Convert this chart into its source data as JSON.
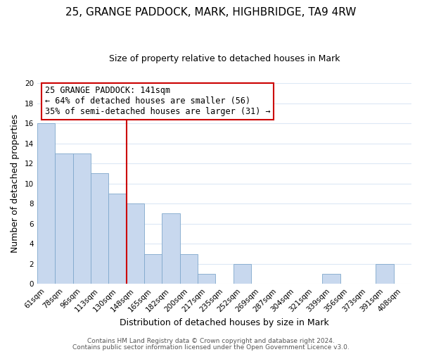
{
  "title1": "25, GRANGE PADDOCK, MARK, HIGHBRIDGE, TA9 4RW",
  "title2": "Size of property relative to detached houses in Mark",
  "xlabel": "Distribution of detached houses by size in Mark",
  "ylabel": "Number of detached properties",
  "bins": [
    "61sqm",
    "78sqm",
    "96sqm",
    "113sqm",
    "130sqm",
    "148sqm",
    "165sqm",
    "182sqm",
    "200sqm",
    "217sqm",
    "235sqm",
    "252sqm",
    "269sqm",
    "287sqm",
    "304sqm",
    "321sqm",
    "339sqm",
    "356sqm",
    "373sqm",
    "391sqm",
    "408sqm"
  ],
  "values": [
    16,
    13,
    13,
    11,
    9,
    8,
    3,
    7,
    3,
    1,
    0,
    2,
    0,
    0,
    0,
    0,
    1,
    0,
    0,
    2,
    0
  ],
  "bar_color": "#c8d8ee",
  "bar_edge_color": "#7fa8cc",
  "vline_color": "#cc0000",
  "annotation_title": "25 GRANGE PADDOCK: 141sqm",
  "annotation_line1": "← 64% of detached houses are smaller (56)",
  "annotation_line2": "35% of semi-detached houses are larger (31) →",
  "annotation_box_facecolor": "white",
  "annotation_box_edgecolor": "#cc0000",
  "ylim": [
    0,
    20
  ],
  "yticks": [
    0,
    2,
    4,
    6,
    8,
    10,
    12,
    14,
    16,
    18,
    20
  ],
  "footer1": "Contains HM Land Registry data © Crown copyright and database right 2024.",
  "footer2": "Contains public sector information licensed under the Open Government Licence v3.0.",
  "grid_color": "#dce8f5",
  "background_color": "#ffffff",
  "title1_fontsize": 11,
  "title2_fontsize": 9,
  "xlabel_fontsize": 9,
  "ylabel_fontsize": 9,
  "tick_fontsize": 7.5,
  "annotation_fontsize": 8.5,
  "footer_fontsize": 6.5,
  "footer_color": "#555555"
}
